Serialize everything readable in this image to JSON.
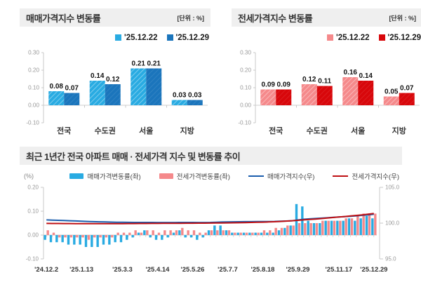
{
  "colors": {
    "header_bg": "#efefef",
    "light_blue": "#29ABE2",
    "dark_blue": "#1B75BC",
    "light_pink": "#F5898B",
    "dark_red": "#D8070B",
    "line_blue": "#1A5DAD",
    "line_red": "#BE1014",
    "axis_line": "#c8c8c8",
    "tick_text": "#999999",
    "category_text": "#333333",
    "value_text": "#111111"
  },
  "chart_data": [
    {
      "id": "sale-change",
      "type": "bar",
      "title": "매매가격지수 변동률",
      "unit_label": "[단위 : %]",
      "categories": [
        "전국",
        "수도권",
        "서울",
        "지방"
      ],
      "series": [
        {
          "name": "'25.12.22",
          "values": [
            0.08,
            0.14,
            0.21,
            0.03
          ],
          "color": "#29ABE2",
          "hatch": true
        },
        {
          "name": "'25.12.29",
          "values": [
            0.07,
            0.12,
            0.21,
            0.03
          ],
          "color": "#1B75BC",
          "hatch": false
        }
      ],
      "ylim": [
        -0.1,
        0.3
      ],
      "yticks": [
        0.3,
        0.2,
        0.1,
        0.0,
        -0.1
      ],
      "grid": false,
      "legend_position": "top-right"
    },
    {
      "id": "jeonse-change",
      "type": "bar",
      "title": "전세가격지수 변동률",
      "unit_label": "[단위 : %]",
      "categories": [
        "전국",
        "수도권",
        "서울",
        "지방"
      ],
      "series": [
        {
          "name": "'25.12.22",
          "values": [
            0.09,
            0.12,
            0.16,
            0.05
          ],
          "color": "#F5898B",
          "hatch": true
        },
        {
          "name": "'25.12.29",
          "values": [
            0.09,
            0.11,
            0.14,
            0.07
          ],
          "color": "#D8070B",
          "hatch": false
        }
      ],
      "ylim": [
        -0.1,
        0.3
      ],
      "yticks": [
        0.3,
        0.2,
        0.1,
        0.0,
        -0.1
      ],
      "grid": false,
      "legend_position": "top-right"
    },
    {
      "id": "trend",
      "type": "combo",
      "title": "최근 1년간 전국 아파트 매매 · 전세가격 지수 및 변동률 추이",
      "left_axis_label": "(%)",
      "left_ylim": [
        -0.1,
        0.2
      ],
      "left_yticks": [
        0.2,
        0.1,
        0.0,
        -0.1
      ],
      "right_ylim": [
        95.0,
        105.0
      ],
      "right_yticks": [
        105.0,
        100.0,
        95.0
      ],
      "x_tick_labels": [
        "'24.12.2",
        "'25.1.13",
        "'25.3.3",
        "'25.4.14",
        "'25.5.26",
        "'25.7.7",
        "'25.8.18",
        "'25.9.29",
        "'25.11.17",
        "'25.12.29"
      ],
      "x_tick_indices": [
        0,
        6,
        13,
        19,
        25,
        31,
        37,
        43,
        50,
        56
      ],
      "legend_position": "top",
      "series": [
        {
          "name": "매매가격변동률(좌)",
          "type": "bar",
          "axis": "left",
          "color": "#29ABE2",
          "values": [
            -0.02,
            -0.03,
            -0.03,
            -0.03,
            -0.04,
            -0.04,
            -0.04,
            -0.05,
            -0.05,
            -0.05,
            -0.04,
            -0.04,
            -0.03,
            -0.03,
            -0.02,
            -0.01,
            0.01,
            0.02,
            -0.01,
            -0.02,
            -0.02,
            -0.01,
            0.01,
            0.02,
            -0.01,
            -0.01,
            -0.02,
            -0.01,
            0.02,
            0.04,
            0.04,
            0.02,
            0.01,
            0.01,
            0.01,
            0.01,
            0.01,
            0.01,
            0.01,
            0.01,
            0.02,
            0.03,
            0.04,
            0.13,
            0.12,
            0.06,
            0.05,
            0.05,
            0.06,
            0.06,
            0.06,
            0.06,
            0.07,
            0.06,
            0.07,
            0.08,
            0.07
          ]
        },
        {
          "name": "전세가격변동률(좌)",
          "type": "bar",
          "axis": "left",
          "color": "#F5898B",
          "values": [
            0.02,
            0.01,
            -0.01,
            -0.01,
            -0.01,
            -0.01,
            -0.01,
            -0.02,
            -0.01,
            -0.01,
            -0.01,
            -0.01,
            0.01,
            0.01,
            0.01,
            0.02,
            0.01,
            0.02,
            0.02,
            0.01,
            0.02,
            0.02,
            0.02,
            0.03,
            0.02,
            0.02,
            0.01,
            0.01,
            0.02,
            0.02,
            0.02,
            0.02,
            0.01,
            0.01,
            0.01,
            0.01,
            0.01,
            0.02,
            0.02,
            0.03,
            0.03,
            0.04,
            0.04,
            0.05,
            0.05,
            0.05,
            0.05,
            0.06,
            0.06,
            0.06,
            0.06,
            0.07,
            0.07,
            0.08,
            0.09,
            0.09,
            0.09
          ]
        },
        {
          "name": "매매가격지수(우)",
          "type": "line",
          "axis": "right",
          "color": "#1A5DAD",
          "values": [
            100.45,
            100.42,
            100.39,
            100.36,
            100.33,
            100.3,
            100.27,
            100.24,
            100.21,
            100.19,
            100.17,
            100.15,
            100.13,
            100.12,
            100.11,
            100.1,
            100.1,
            100.1,
            100.1,
            100.09,
            100.09,
            100.09,
            100.09,
            100.1,
            100.1,
            100.1,
            100.09,
            100.09,
            100.1,
            100.13,
            100.16,
            100.18,
            100.19,
            100.2,
            100.21,
            100.21,
            100.22,
            100.22,
            100.23,
            100.24,
            100.26,
            100.29,
            100.33,
            100.44,
            100.54,
            100.6,
            100.65,
            100.7,
            100.75,
            100.8,
            100.85,
            100.9,
            100.96,
            101.02,
            101.09,
            101.16,
            101.24
          ]
        },
        {
          "name": "전세가격지수(우)",
          "type": "line",
          "axis": "right",
          "color": "#BE1014",
          "values": [
            99.96,
            99.95,
            99.95,
            99.94,
            99.94,
            99.93,
            99.93,
            99.93,
            99.92,
            99.92,
            99.92,
            99.92,
            99.93,
            99.93,
            99.94,
            99.94,
            99.95,
            99.95,
            99.96,
            99.96,
            99.97,
            99.97,
            99.98,
            99.98,
            99.99,
            99.99,
            100.0,
            100.0,
            100.01,
            100.02,
            100.03,
            100.04,
            100.05,
            100.06,
            100.08,
            100.1,
            100.12,
            100.14,
            100.17,
            100.2,
            100.24,
            100.28,
            100.33,
            100.39,
            100.45,
            100.51,
            100.57,
            100.64,
            100.71,
            100.78,
            100.85,
            100.92,
            101.0,
            101.08,
            101.16,
            101.25,
            101.34
          ]
        }
      ]
    }
  ]
}
